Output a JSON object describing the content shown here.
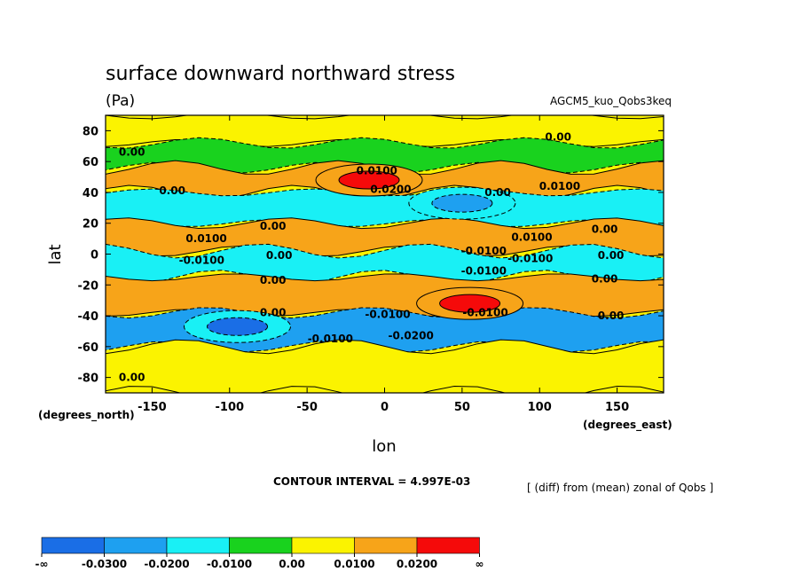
{
  "chart_data": {
    "type": "heatmap",
    "title": "surface downward northward stress",
    "units": "(Pa)",
    "dataset": "AGCM5_kuo_Qobs3keq",
    "xlabel": "lon",
    "ylabel": "lat",
    "xunits": "(degrees_east)",
    "yunits": "(degrees_north)",
    "xlim": [
      -180,
      180
    ],
    "ylim": [
      -90,
      90
    ],
    "xticks": [
      -150,
      -100,
      -50,
      0,
      50,
      100,
      150
    ],
    "yticks": [
      80,
      60,
      40,
      20,
      0,
      -20,
      -40,
      -60,
      -80
    ],
    "contour_interval": "CONTOUR INTERVAL = 4.997E-03",
    "note": "[ (diff) from (mean) zonal of Qobs ]",
    "colorbar": {
      "levels": [
        "-∞",
        "-0.0300",
        "-0.0200",
        "-0.0100",
        "0.00",
        "0.0100",
        "0.0200",
        "∞"
      ],
      "colors": [
        "#1a6ee6",
        "#1ea0f0",
        "#19f0f5",
        "#19d21e",
        "#fbf300",
        "#f7a419",
        "#f50a0a"
      ]
    },
    "bands": [
      {
        "lat_top": 90,
        "lat_bottom": 72,
        "level": "0.00 to 0.0100"
      },
      {
        "lat_top": 72,
        "lat_bottom": 56,
        "level": "-0.0100 to 0.00"
      },
      {
        "lat_top": 56,
        "lat_bottom": 40,
        "level": "0.0100 to 0.0200"
      },
      {
        "lat_top": 40,
        "lat_bottom": 20,
        "level": "-0.0200 to -0.0100"
      },
      {
        "lat_top": 20,
        "lat_bottom": 2,
        "level": "0.0100 to 0.0200"
      },
      {
        "lat_top": 2,
        "lat_bottom": -15,
        "level": "-0.0200 to -0.0100"
      },
      {
        "lat_top": -15,
        "lat_bottom": -38,
        "level": "0.0100 to 0.0200"
      },
      {
        "lat_top": -38,
        "lat_bottom": -60,
        "level": "-0.0300 to -0.0200"
      },
      {
        "lat_top": -60,
        "lat_bottom": -90,
        "level": "0.00 to 0.0100"
      }
    ],
    "extrema": [
      {
        "lon": -10,
        "lat": 48,
        "value": ">0.0200",
        "sign": "max"
      },
      {
        "lon": 55,
        "lat": -32,
        "value": ">0.0200",
        "sign": "max"
      },
      {
        "lon": 50,
        "lat": 33,
        "value": "<-0.0200",
        "sign": "min"
      },
      {
        "lon": -95,
        "lat": -47,
        "value": "<-0.0300",
        "sign": "min"
      }
    ],
    "contour_labels": [
      {
        "lon": -163,
        "lat": 66,
        "text": "0.00"
      },
      {
        "lon": -137,
        "lat": 41,
        "text": "0.00"
      },
      {
        "lon": -5,
        "lat": 54,
        "text": "0.0100"
      },
      {
        "lon": 4,
        "lat": 42,
        "text": "0.0200"
      },
      {
        "lon": 73,
        "lat": 40,
        "text": "0.00"
      },
      {
        "lon": 113,
        "lat": 44,
        "text": "0.0100"
      },
      {
        "lon": 112,
        "lat": 76,
        "text": "0.00"
      },
      {
        "lon": -72,
        "lat": 18,
        "text": "0.00"
      },
      {
        "lon": -115,
        "lat": 10,
        "text": "0.0100"
      },
      {
        "lon": 95,
        "lat": 11,
        "text": "0.0100"
      },
      {
        "lon": 142,
        "lat": 16,
        "text": "0.00"
      },
      {
        "lon": -118,
        "lat": -4,
        "text": "-0.0100"
      },
      {
        "lon": -68,
        "lat": -1,
        "text": "0.00"
      },
      {
        "lon": 64,
        "lat": 2,
        "text": "-0.0100"
      },
      {
        "lon": 94,
        "lat": -3,
        "text": "-0.0100"
      },
      {
        "lon": 146,
        "lat": -1,
        "text": "0.00"
      },
      {
        "lon": 64,
        "lat": -11,
        "text": "-0.0100"
      },
      {
        "lon": -72,
        "lat": -17,
        "text": "0.00"
      },
      {
        "lon": 142,
        "lat": -16,
        "text": "0.00"
      },
      {
        "lon": -72,
        "lat": -38,
        "text": "0.00"
      },
      {
        "lon": 2,
        "lat": -39,
        "text": "-0.0100"
      },
      {
        "lon": 65,
        "lat": -38,
        "text": "-0.0100"
      },
      {
        "lon": 146,
        "lat": -40,
        "text": "0.00"
      },
      {
        "lon": -35,
        "lat": -55,
        "text": "-0.0100"
      },
      {
        "lon": 17,
        "lat": -53,
        "text": "-0.0200"
      },
      {
        "lon": -163,
        "lat": -80,
        "text": "0.00"
      }
    ]
  }
}
